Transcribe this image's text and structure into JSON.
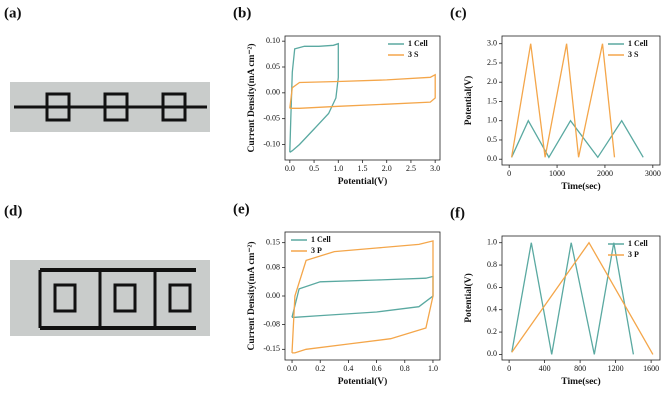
{
  "photo_labels": [
    "(a)",
    "(d)"
  ],
  "chart_data": [
    {
      "type": "line",
      "label": "(b)",
      "xlabel": "Potential(V)",
      "ylabel": "Current Density(mA cm⁻²)",
      "xlim": [
        -0.1,
        3.1
      ],
      "ylim": [
        -0.13,
        0.11
      ],
      "xticks": [
        {
          "value": 0,
          "label": "0.0"
        },
        {
          "value": 0.5,
          "label": "0.5"
        },
        {
          "value": 1,
          "label": "1.0"
        },
        {
          "value": 1.5,
          "label": "1.5"
        },
        {
          "value": 2,
          "label": "2.0"
        },
        {
          "value": 2.5,
          "label": "2.5"
        },
        {
          "value": 3,
          "label": "3.0"
        }
      ],
      "yticks": [
        {
          "value": -0.1,
          "label": "-0.10"
        },
        {
          "value": -0.05,
          "label": "-0.05"
        },
        {
          "value": 0,
          "label": "0.00"
        },
        {
          "value": 0.05,
          "label": "0.05"
        },
        {
          "value": 0.1,
          "label": "0.10"
        }
      ],
      "legend": "upper right",
      "series": [
        {
          "name": "1 Cell",
          "color": "#5aa9a1",
          "x": [
            0,
            0.02,
            0.05,
            0.1,
            0.3,
            0.6,
            0.9,
            1.0,
            1.0,
            0.95,
            0.8,
            0.5,
            0.2,
            0.05,
            0
          ],
          "values": [
            -0.115,
            -0.05,
            0.04,
            0.085,
            0.09,
            0.09,
            0.092,
            0.095,
            0.03,
            -0.01,
            -0.04,
            -0.07,
            -0.1,
            -0.112,
            -0.115
          ]
        },
        {
          "name": "3 S",
          "color": "#f4a64a",
          "x": [
            0,
            0.05,
            0.2,
            1,
            2,
            2.9,
            3.0,
            3.0,
            2.9,
            2,
            1,
            0.2,
            0.05,
            0
          ],
          "values": [
            -0.03,
            0.01,
            0.02,
            0.022,
            0.025,
            0.03,
            0.035,
            -0.01,
            -0.018,
            -0.022,
            -0.026,
            -0.03,
            -0.03,
            -0.03
          ]
        }
      ]
    },
    {
      "type": "line",
      "label": "(c)",
      "xlabel": "Time(sec)",
      "ylabel": "Potential(V)",
      "xlim": [
        -150,
        3150
      ],
      "ylim": [
        -0.15,
        3.2
      ],
      "xticks": [
        0,
        1000,
        2000,
        3000
      ],
      "yticks": [
        {
          "value": 0,
          "label": "0.0"
        },
        {
          "value": 0.5,
          "label": "0.5"
        },
        {
          "value": 1,
          "label": "1.0"
        },
        {
          "value": 1.5,
          "label": "1.5"
        },
        {
          "value": 2,
          "label": "2.0"
        },
        {
          "value": 2.5,
          "label": "2.5"
        },
        {
          "value": 3,
          "label": "3.0"
        }
      ],
      "legend": "upper right",
      "series": [
        {
          "name": "1 Cell",
          "color": "#5aa9a1",
          "x": [
            50,
            400,
            830,
            1280,
            1850,
            2350,
            2800
          ],
          "values": [
            0.05,
            1,
            0.05,
            1,
            0.05,
            1,
            0.05
          ]
        },
        {
          "name": "3 S",
          "color": "#f4a64a",
          "x": [
            50,
            450,
            750,
            1200,
            1450,
            1950,
            2200
          ],
          "values": [
            0.05,
            3,
            0.05,
            3,
            0.05,
            3,
            0.05
          ]
        }
      ]
    },
    {
      "type": "line",
      "label": "(e)",
      "xlabel": "Potential(V)",
      "ylabel": "Current Density(mA cm⁻²)",
      "xlim": [
        -0.05,
        1.05
      ],
      "ylim": [
        -0.18,
        0.18
      ],
      "xticks": [
        {
          "value": 0,
          "label": "0.0"
        },
        {
          "value": 0.2,
          "label": "0.2"
        },
        {
          "value": 0.4,
          "label": "0.4"
        },
        {
          "value": 0.6,
          "label": "0.6"
        },
        {
          "value": 0.8,
          "label": "0.8"
        },
        {
          "value": 1,
          "label": "1.0"
        }
      ],
      "yticks": [
        {
          "value": -0.15,
          "label": "-0.15"
        },
        {
          "value": -0.08,
          "label": "-0.08"
        },
        {
          "value": 0,
          "label": "0.00"
        },
        {
          "value": 0.08,
          "label": "0.08"
        },
        {
          "value": 0.15,
          "label": "0.15"
        }
      ],
      "legend": "upper left",
      "series": [
        {
          "name": "1 Cell",
          "color": "#5aa9a1",
          "x": [
            0,
            0.05,
            0.2,
            0.6,
            0.95,
            1.0,
            1.0,
            0.9,
            0.6,
            0.2,
            0.02,
            0
          ],
          "values": [
            -0.06,
            0.02,
            0.04,
            0.045,
            0.05,
            0.055,
            0.0,
            -0.03,
            -0.045,
            -0.055,
            -0.06,
            -0.06
          ]
        },
        {
          "name": "3 P",
          "color": "#f4a64a",
          "x": [
            0,
            0.02,
            0.1,
            0.3,
            0.6,
            0.9,
            1.0,
            1.0,
            0.95,
            0.7,
            0.4,
            0.1,
            0.02,
            0
          ],
          "values": [
            -0.16,
            0.0,
            0.1,
            0.125,
            0.135,
            0.145,
            0.155,
            0.0,
            -0.09,
            -0.12,
            -0.135,
            -0.15,
            -0.16,
            -0.16
          ]
        }
      ]
    },
    {
      "type": "line",
      "label": "(f)",
      "xlabel": "Time(sec)",
      "ylabel": "Potential(V)",
      "xlim": [
        -80,
        1700
      ],
      "ylim": [
        -0.05,
        1.06
      ],
      "xticks": [
        0,
        400,
        800,
        1200,
        1600
      ],
      "yticks": [
        {
          "value": 0,
          "label": "0.0"
        },
        {
          "value": 0.2,
          "label": "0.2"
        },
        {
          "value": 0.4,
          "label": "0.4"
        },
        {
          "value": 0.6,
          "label": "0.6"
        },
        {
          "value": 0.8,
          "label": "0.8"
        },
        {
          "value": 1,
          "label": "1.0"
        }
      ],
      "legend": "upper right",
      "series": [
        {
          "name": "1 Cell",
          "color": "#5aa9a1",
          "x": [
            30,
            250,
            480,
            700,
            960,
            1180,
            1400
          ],
          "values": [
            0.02,
            1,
            0,
            1,
            0,
            1,
            0
          ]
        },
        {
          "name": "3 P",
          "color": "#f4a64a",
          "x": [
            30,
            900,
            1620
          ],
          "values": [
            0.02,
            1,
            0
          ]
        }
      ]
    }
  ]
}
